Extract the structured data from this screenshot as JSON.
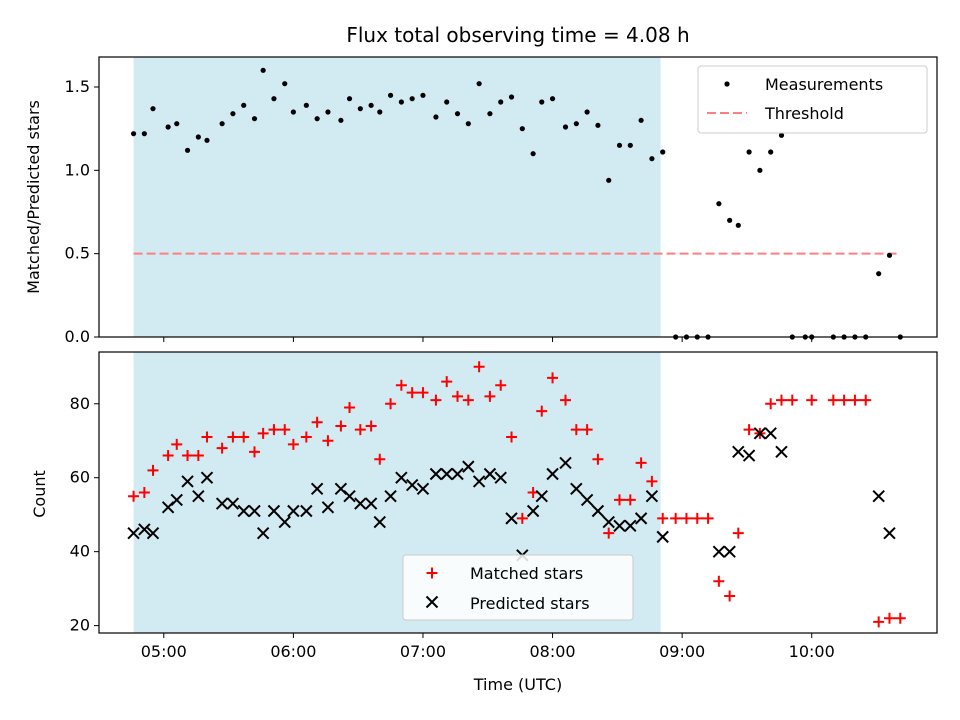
{
  "chart_data": [
    {
      "type": "scatter",
      "title": "Flux total observing time = 4.08 h",
      "ylabel": "Matched/Predicted stars",
      "xlabel": "",
      "xlim": [
        "04:30",
        "10:58"
      ],
      "ylim": [
        0,
        1.68
      ],
      "yticks": [
        "0.0",
        "0.5",
        "1.0",
        "1.5"
      ],
      "shaded_interval": [
        "04:46",
        "08:50"
      ],
      "shade_color": "#add8e6",
      "legend_position": "upper right",
      "threshold": {
        "name": "Threshold",
        "value": 0.5,
        "x_range": [
          "04:46",
          "10:40"
        ],
        "color": "#ff7f7f",
        "style": "dashed"
      },
      "series": [
        {
          "name": "Measurements",
          "color": "#000000",
          "marker": "dot",
          "points": [
            [
              "04:46",
              1.22
            ],
            [
              "04:51",
              1.22
            ],
            [
              "04:55",
              1.37
            ],
            [
              "05:02",
              1.26
            ],
            [
              "05:06",
              1.28
            ],
            [
              "05:11",
              1.12
            ],
            [
              "05:16",
              1.2
            ],
            [
              "05:20",
              1.18
            ],
            [
              "05:27",
              1.28
            ],
            [
              "05:32",
              1.34
            ],
            [
              "05:37",
              1.39
            ],
            [
              "05:42",
              1.31
            ],
            [
              "05:46",
              1.6
            ],
            [
              "05:51",
              1.43
            ],
            [
              "05:56",
              1.52
            ],
            [
              "06:00",
              1.35
            ],
            [
              "06:06",
              1.39
            ],
            [
              "06:11",
              1.31
            ],
            [
              "06:16",
              1.35
            ],
            [
              "06:22",
              1.3
            ],
            [
              "06:26",
              1.43
            ],
            [
              "06:31",
              1.37
            ],
            [
              "06:36",
              1.39
            ],
            [
              "06:40",
              1.35
            ],
            [
              "06:45",
              1.45
            ],
            [
              "06:50",
              1.41
            ],
            [
              "06:55",
              1.43
            ],
            [
              "07:00",
              1.45
            ],
            [
              "07:06",
              1.32
            ],
            [
              "07:11",
              1.41
            ],
            [
              "07:16",
              1.34
            ],
            [
              "07:21",
              1.28
            ],
            [
              "07:26",
              1.52
            ],
            [
              "07:31",
              1.34
            ],
            [
              "07:36",
              1.41
            ],
            [
              "07:41",
              1.44
            ],
            [
              "07:46",
              1.25
            ],
            [
              "07:51",
              1.1
            ],
            [
              "07:55",
              1.41
            ],
            [
              "08:00",
              1.43
            ],
            [
              "08:06",
              1.26
            ],
            [
              "08:11",
              1.28
            ],
            [
              "08:16",
              1.35
            ],
            [
              "08:21",
              1.27
            ],
            [
              "08:26",
              0.94
            ],
            [
              "08:31",
              1.15
            ],
            [
              "08:36",
              1.15
            ],
            [
              "08:41",
              1.3
            ],
            [
              "08:46",
              1.07
            ],
            [
              "08:51",
              1.11
            ],
            [
              "08:57",
              0.0
            ],
            [
              "09:02",
              0.0
            ],
            [
              "09:07",
              0.0
            ],
            [
              "09:12",
              0.0
            ],
            [
              "09:17",
              0.8
            ],
            [
              "09:22",
              0.7
            ],
            [
              "09:26",
              0.67
            ],
            [
              "09:31",
              1.11
            ],
            [
              "09:36",
              1.0
            ],
            [
              "09:41",
              1.11
            ],
            [
              "09:46",
              1.21
            ],
            [
              "09:51",
              0.0
            ],
            [
              "09:57",
              0.0
            ],
            [
              "10:00",
              0.0
            ],
            [
              "10:10",
              0.0
            ],
            [
              "10:15",
              0.0
            ],
            [
              "10:20",
              0.0
            ],
            [
              "10:25",
              0.0
            ],
            [
              "10:31",
              0.38
            ],
            [
              "10:36",
              0.49
            ],
            [
              "10:41",
              0.0
            ]
          ]
        }
      ]
    },
    {
      "type": "scatter",
      "title": "",
      "ylabel": "Count",
      "xlabel": "Time (UTC)",
      "xlim": [
        "04:30",
        "10:58"
      ],
      "ylim": [
        18,
        94
      ],
      "yticks": [
        "20",
        "40",
        "60",
        "80"
      ],
      "xticks": [
        "05:00",
        "06:00",
        "07:00",
        "08:00",
        "09:00",
        "10:00"
      ],
      "shaded_interval": [
        "04:46",
        "08:50"
      ],
      "shade_color": "#add8e6",
      "legend_position": "lower center",
      "series": [
        {
          "name": "Matched stars",
          "color": "#ff0000",
          "marker": "plus",
          "points": [
            [
              "04:46",
              55
            ],
            [
              "04:51",
              56
            ],
            [
              "04:55",
              62
            ],
            [
              "05:02",
              66
            ],
            [
              "05:06",
              69
            ],
            [
              "05:11",
              66
            ],
            [
              "05:16",
              66
            ],
            [
              "05:20",
              71
            ],
            [
              "05:27",
              68
            ],
            [
              "05:32",
              71
            ],
            [
              "05:37",
              71
            ],
            [
              "05:42",
              67
            ],
            [
              "05:46",
              72
            ],
            [
              "05:51",
              73
            ],
            [
              "05:56",
              73
            ],
            [
              "06:00",
              69
            ],
            [
              "06:06",
              71
            ],
            [
              "06:11",
              75
            ],
            [
              "06:16",
              70
            ],
            [
              "06:22",
              74
            ],
            [
              "06:26",
              79
            ],
            [
              "06:31",
              73
            ],
            [
              "06:36",
              74
            ],
            [
              "06:40",
              65
            ],
            [
              "06:45",
              80
            ],
            [
              "06:50",
              85
            ],
            [
              "06:55",
              83
            ],
            [
              "07:00",
              83
            ],
            [
              "07:06",
              81
            ],
            [
              "07:11",
              86
            ],
            [
              "07:16",
              82
            ],
            [
              "07:21",
              81
            ],
            [
              "07:26",
              90
            ],
            [
              "07:31",
              82
            ],
            [
              "07:36",
              85
            ],
            [
              "07:41",
              71
            ],
            [
              "07:46",
              49
            ],
            [
              "07:51",
              56
            ],
            [
              "07:55",
              78
            ],
            [
              "08:00",
              87
            ],
            [
              "08:06",
              81
            ],
            [
              "08:11",
              73
            ],
            [
              "08:16",
              73
            ],
            [
              "08:21",
              65
            ],
            [
              "08:26",
              45
            ],
            [
              "08:31",
              54
            ],
            [
              "08:36",
              54
            ],
            [
              "08:41",
              64
            ],
            [
              "08:46",
              59
            ],
            [
              "08:51",
              49
            ],
            [
              "08:57",
              49
            ],
            [
              "09:02",
              49
            ],
            [
              "09:07",
              49
            ],
            [
              "09:12",
              49
            ],
            [
              "09:17",
              32
            ],
            [
              "09:22",
              28
            ],
            [
              "09:26",
              45
            ],
            [
              "09:31",
              73
            ],
            [
              "09:36",
              72
            ],
            [
              "09:41",
              80
            ],
            [
              "09:46",
              81
            ],
            [
              "09:51",
              81
            ],
            [
              "10:00",
              81
            ],
            [
              "10:10",
              81
            ],
            [
              "10:15",
              81
            ],
            [
              "10:20",
              81
            ],
            [
              "10:25",
              81
            ],
            [
              "10:31",
              21
            ],
            [
              "10:36",
              22
            ],
            [
              "10:41",
              22
            ]
          ]
        },
        {
          "name": "Predicted stars",
          "color": "#000000",
          "marker": "x",
          "points": [
            [
              "04:46",
              45
            ],
            [
              "04:51",
              46
            ],
            [
              "04:55",
              45
            ],
            [
              "05:02",
              52
            ],
            [
              "05:06",
              54
            ],
            [
              "05:11",
              59
            ],
            [
              "05:16",
              55
            ],
            [
              "05:20",
              60
            ],
            [
              "05:27",
              53
            ],
            [
              "05:32",
              53
            ],
            [
              "05:37",
              51
            ],
            [
              "05:42",
              51
            ],
            [
              "05:46",
              45
            ],
            [
              "05:51",
              51
            ],
            [
              "05:56",
              48
            ],
            [
              "06:00",
              51
            ],
            [
              "06:06",
              51
            ],
            [
              "06:11",
              57
            ],
            [
              "06:16",
              52
            ],
            [
              "06:22",
              57
            ],
            [
              "06:26",
              55
            ],
            [
              "06:31",
              53
            ],
            [
              "06:36",
              53
            ],
            [
              "06:40",
              48
            ],
            [
              "06:45",
              55
            ],
            [
              "06:50",
              60
            ],
            [
              "06:55",
              58
            ],
            [
              "07:00",
              57
            ],
            [
              "07:06",
              61
            ],
            [
              "07:11",
              61
            ],
            [
              "07:16",
              61
            ],
            [
              "07:21",
              63
            ],
            [
              "07:26",
              59
            ],
            [
              "07:31",
              61
            ],
            [
              "07:36",
              60
            ],
            [
              "07:41",
              49
            ],
            [
              "07:46",
              39
            ],
            [
              "07:51",
              51
            ],
            [
              "07:55",
              55
            ],
            [
              "08:00",
              61
            ],
            [
              "08:06",
              64
            ],
            [
              "08:11",
              57
            ],
            [
              "08:16",
              54
            ],
            [
              "08:21",
              51
            ],
            [
              "08:26",
              48
            ],
            [
              "08:31",
              47
            ],
            [
              "08:36",
              47
            ],
            [
              "08:41",
              49
            ],
            [
              "08:46",
              55
            ],
            [
              "08:51",
              44
            ],
            [
              "09:17",
              40
            ],
            [
              "09:22",
              40
            ],
            [
              "09:26",
              67
            ],
            [
              "09:31",
              66
            ],
            [
              "09:36",
              72
            ],
            [
              "09:41",
              72
            ],
            [
              "09:46",
              67
            ],
            [
              "10:31",
              55
            ],
            [
              "10:36",
              45
            ]
          ]
        }
      ]
    }
  ]
}
